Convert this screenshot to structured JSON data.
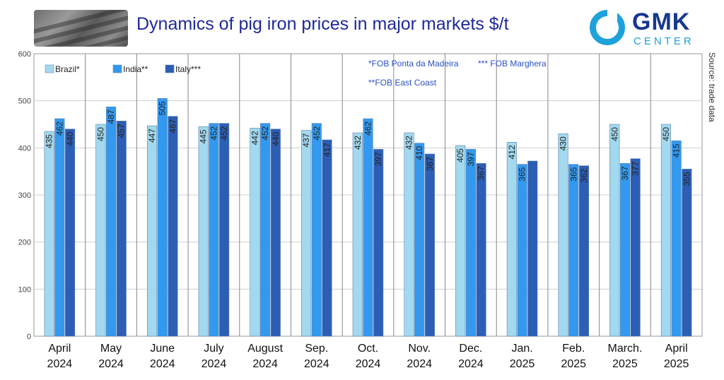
{
  "header": {
    "title": "Dynamics of pig iron prices in major markets $/t",
    "logo_main": "GMK",
    "logo_sub": "CENTER"
  },
  "colors": {
    "brazil": "#a3d9ee",
    "india": "#3399ee",
    "italy": "#2d5eb5",
    "title": "#1f2a9a",
    "note": "#2a50c8",
    "logo_blue": "#17388f",
    "logo_cyan": "#1fa1dc"
  },
  "chart_data": {
    "type": "bar",
    "categories": [
      "April\n2024",
      "May\n2024",
      "June\n2024",
      "July\n2024",
      "August\n2024",
      "Sep.\n2024",
      "Oct.\n2024",
      "Nov.\n2024",
      "Dec.\n2024",
      "Jan.\n2025",
      "Feb.\n2025",
      "March.\n2025",
      "April\n2025"
    ],
    "series": [
      {
        "name": "Brazil*",
        "values": [
          435,
          450,
          447,
          445,
          442,
          437,
          432,
          432,
          405,
          412,
          430,
          450,
          450
        ]
      },
      {
        "name": "India**",
        "values": [
          462,
          487,
          505,
          452,
          452,
          452,
          462,
          410,
          397,
          365,
          365,
          367,
          415
        ]
      },
      {
        "name": "Italy***",
        "values": [
          440,
          457,
          467,
          452,
          440,
          417,
          397,
          387,
          367,
          372,
          362,
          377,
          355
        ]
      }
    ],
    "value_labels": [
      [
        "435",
        "450",
        "447",
        "445",
        "442",
        "437",
        "432",
        "432",
        "405",
        "412",
        "430",
        "450",
        "450"
      ],
      [
        "462",
        "487",
        "505",
        "452",
        "452",
        "452",
        "462",
        "410",
        "397",
        "365",
        "365",
        "367",
        "415"
      ],
      [
        "440",
        "457",
        "467",
        "452",
        "440",
        "417",
        "397",
        "387",
        "367",
        "",
        "362",
        "377",
        "355"
      ]
    ],
    "yticks": [
      "0",
      "100",
      "200",
      "300",
      "400",
      "500",
      "600"
    ],
    "ylim": [
      0,
      600
    ],
    "grid": true,
    "legend_position": "top-left",
    "notes": [
      "*FOB Ponta da Madeira",
      "*** FOB Marghera",
      "**FOB East Coast"
    ],
    "source": "Source: trade data"
  }
}
